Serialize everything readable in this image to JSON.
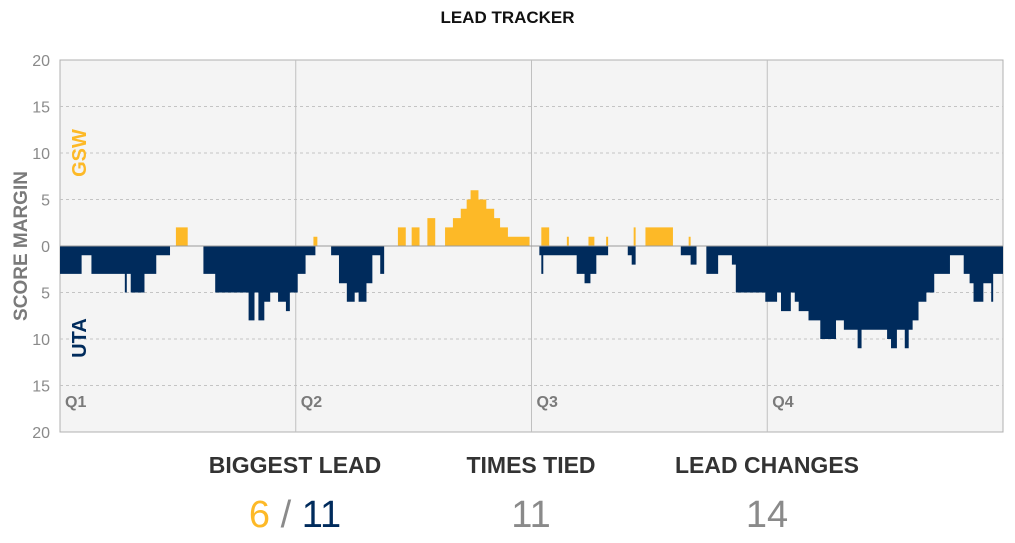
{
  "title": "LEAD TRACKER",
  "colors": {
    "gsw": "#fdb927",
    "uta": "#002b5c",
    "plot_bg": "#f4f4f4",
    "grid": "#cccccc",
    "text": "#8a8a8a"
  },
  "chart_data": {
    "type": "bar",
    "title": "LEAD TRACKER",
    "ylabel": "SCORE MARGIN",
    "team_labels": {
      "top": "GSW",
      "bottom": "UTA"
    },
    "ylim": [
      -20,
      20
    ],
    "yticks": [
      20,
      15,
      10,
      5,
      0,
      5,
      10,
      15,
      20
    ],
    "ytick_values": [
      20,
      15,
      10,
      5,
      0,
      -5,
      -10,
      -15,
      -20
    ],
    "quarters": [
      "Q1",
      "Q2",
      "Q3",
      "Q4"
    ],
    "xlim": [
      0,
      48
    ],
    "series": [
      {
        "name": "GSW",
        "points": [
          [
            5.9,
            2
          ],
          [
            6.5,
            0
          ],
          [
            12.9,
            1
          ],
          [
            13.1,
            0
          ],
          [
            17.2,
            2
          ],
          [
            17.6,
            0
          ],
          [
            17.9,
            2
          ],
          [
            18.3,
            0
          ],
          [
            18.7,
            3
          ],
          [
            19.1,
            0
          ],
          [
            19.6,
            2
          ],
          [
            20.0,
            3
          ],
          [
            20.4,
            4
          ],
          [
            20.7,
            5
          ],
          [
            20.9,
            6
          ],
          [
            21.3,
            5
          ],
          [
            21.7,
            4
          ],
          [
            22.1,
            3
          ],
          [
            22.4,
            2
          ],
          [
            22.8,
            1
          ],
          [
            23.3,
            1
          ],
          [
            23.9,
            0
          ],
          [
            24.5,
            2
          ],
          [
            24.9,
            0
          ],
          [
            25.8,
            1
          ],
          [
            25.9,
            0
          ],
          [
            26.9,
            1
          ],
          [
            27.2,
            0
          ],
          [
            27.8,
            1
          ],
          [
            27.9,
            0
          ],
          [
            29.2,
            2
          ],
          [
            29.3,
            0
          ],
          [
            29.8,
            2
          ],
          [
            31.2,
            0
          ],
          [
            32.0,
            1
          ],
          [
            32.1,
            0
          ]
        ]
      },
      {
        "name": "UTA",
        "points": [
          [
            0,
            3
          ],
          [
            0.6,
            3
          ],
          [
            1.1,
            1
          ],
          [
            1.6,
            3
          ],
          [
            3.2,
            3
          ],
          [
            3.3,
            5
          ],
          [
            3.4,
            3
          ],
          [
            3.6,
            5
          ],
          [
            4.3,
            3
          ],
          [
            4.9,
            1
          ],
          [
            5.6,
            0
          ],
          [
            7.3,
            3
          ],
          [
            7.9,
            5
          ],
          [
            9.6,
            8
          ],
          [
            9.9,
            5
          ],
          [
            10.1,
            8
          ],
          [
            10.4,
            6
          ],
          [
            10.7,
            5
          ],
          [
            11.1,
            6
          ],
          [
            11.5,
            7
          ],
          [
            11.7,
            5
          ],
          [
            12.1,
            3
          ],
          [
            12.5,
            1
          ],
          [
            13.0,
            0
          ],
          [
            13.8,
            1
          ],
          [
            14.2,
            4
          ],
          [
            14.6,
            6
          ],
          [
            15.0,
            5
          ],
          [
            15.2,
            6
          ],
          [
            15.6,
            4
          ],
          [
            15.9,
            1
          ],
          [
            16.3,
            3
          ],
          [
            16.5,
            0
          ],
          [
            23.9,
            0
          ],
          [
            24.4,
            1
          ],
          [
            24.5,
            3
          ],
          [
            24.6,
            1
          ],
          [
            26.3,
            3
          ],
          [
            26.7,
            4
          ],
          [
            27.0,
            3
          ],
          [
            27.3,
            1
          ],
          [
            27.9,
            0
          ],
          [
            28.9,
            1
          ],
          [
            29.1,
            2
          ],
          [
            29.3,
            0
          ],
          [
            31.3,
            0
          ],
          [
            31.6,
            1
          ],
          [
            32.1,
            2
          ],
          [
            32.4,
            0
          ],
          [
            32.9,
            3
          ],
          [
            33.5,
            1
          ],
          [
            34.2,
            2
          ],
          [
            34.4,
            5
          ],
          [
            35.9,
            6
          ],
          [
            36.5,
            5
          ],
          [
            36.7,
            7
          ],
          [
            37.2,
            5
          ],
          [
            37.4,
            6
          ],
          [
            37.6,
            7
          ],
          [
            38.1,
            8
          ],
          [
            38.7,
            10
          ],
          [
            39.5,
            8
          ],
          [
            39.9,
            9
          ],
          [
            40.6,
            11
          ],
          [
            40.8,
            9
          ],
          [
            41.7,
            9
          ],
          [
            42.1,
            10
          ],
          [
            42.3,
            11
          ],
          [
            42.6,
            9
          ],
          [
            43.0,
            11
          ],
          [
            43.2,
            9
          ],
          [
            43.4,
            8
          ],
          [
            43.7,
            6
          ],
          [
            44.1,
            5
          ],
          [
            44.5,
            3
          ],
          [
            45.3,
            1
          ],
          [
            46.0,
            3
          ],
          [
            46.3,
            4
          ],
          [
            46.5,
            6
          ],
          [
            47.0,
            4
          ],
          [
            47.4,
            6
          ],
          [
            47.5,
            3
          ],
          [
            48.0,
            3
          ]
        ]
      }
    ],
    "grid": "dashed-horizontal"
  },
  "stats": {
    "biggest_lead_label": "BIGGEST LEAD",
    "gsw_lead": "6",
    "separator": "/",
    "uta_lead": "11",
    "times_tied_label": "TIMES TIED",
    "times_tied": "11",
    "lead_changes_label": "LEAD CHANGES",
    "lead_changes": "14"
  }
}
